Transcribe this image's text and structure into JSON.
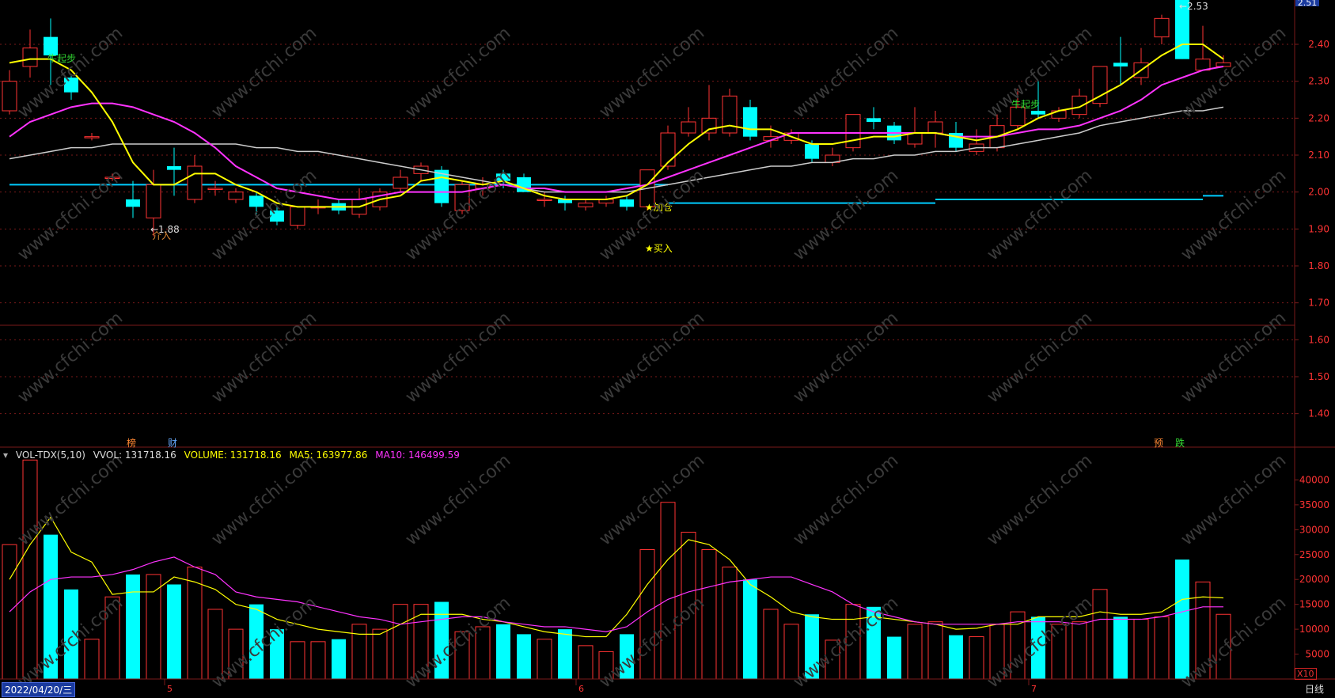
{
  "colors": {
    "background": "#000000",
    "up": "#ff3333",
    "down": "#00ffff",
    "ma5": "#ffff00",
    "ma10": "#ff33ff",
    "ma_long": "#cccccc",
    "support": "#00ccff",
    "grid": "#7a1a1a",
    "axis_text": "#ff3333"
  },
  "price_axis": {
    "min": 1.32,
    "max": 2.52,
    "ticks": [
      "2.40",
      "2.30",
      "2.20",
      "2.10",
      "2.00",
      "1.90",
      "1.80",
      "1.70",
      "1.60",
      "1.50",
      "1.40"
    ],
    "top_tag": "2.51"
  },
  "volume_axis": {
    "max": 45000,
    "ticks": [
      "40000",
      "35000",
      "30000",
      "25000",
      "20000",
      "15000",
      "10000",
      "5000"
    ],
    "unit": "X10"
  },
  "candles": [
    {
      "o": 2.22,
      "c": 2.3,
      "h": 2.33,
      "l": 2.21
    },
    {
      "o": 2.34,
      "c": 2.39,
      "h": 2.44,
      "l": 2.31
    },
    {
      "o": 2.42,
      "c": 2.37,
      "h": 2.47,
      "l": 2.29
    },
    {
      "o": 2.31,
      "c": 2.27,
      "h": 2.32,
      "l": 2.25
    },
    {
      "o": 2.15,
      "c": 2.15,
      "h": 2.16,
      "l": 2.14
    },
    {
      "o": 2.04,
      "c": 2.04,
      "h": 2.05,
      "l": 2.03
    },
    {
      "o": 1.98,
      "c": 1.96,
      "h": 2.03,
      "l": 1.93
    },
    {
      "o": 1.93,
      "c": 2.02,
      "h": 2.06,
      "l": 1.88
    },
    {
      "o": 2.07,
      "c": 2.06,
      "h": 2.12,
      "l": 1.99
    },
    {
      "o": 1.98,
      "c": 2.07,
      "h": 2.1,
      "l": 1.97
    },
    {
      "o": 2.01,
      "c": 2.01,
      "h": 2.03,
      "l": 1.99
    },
    {
      "o": 1.98,
      "c": 2.0,
      "h": 2.01,
      "l": 1.97
    },
    {
      "o": 1.99,
      "c": 1.96,
      "h": 2.0,
      "l": 1.94
    },
    {
      "o": 1.95,
      "c": 1.92,
      "h": 1.96,
      "l": 1.91
    },
    {
      "o": 1.91,
      "c": 1.96,
      "h": 1.96,
      "l": 1.9
    },
    {
      "o": 1.96,
      "c": 1.96,
      "h": 1.98,
      "l": 1.94
    },
    {
      "o": 1.97,
      "c": 1.95,
      "h": 1.98,
      "l": 1.94
    },
    {
      "o": 1.94,
      "c": 1.98,
      "h": 2.01,
      "l": 1.93
    },
    {
      "o": 1.96,
      "c": 2.0,
      "h": 2.01,
      "l": 1.95
    },
    {
      "o": 2.01,
      "c": 2.04,
      "h": 2.06,
      "l": 2.0
    },
    {
      "o": 2.05,
      "c": 2.07,
      "h": 2.08,
      "l": 2.03
    },
    {
      "o": 2.06,
      "c": 1.97,
      "h": 2.07,
      "l": 1.96
    },
    {
      "o": 1.95,
      "c": 2.02,
      "h": 2.03,
      "l": 1.94
    },
    {
      "o": 2.01,
      "c": 2.02,
      "h": 2.04,
      "l": 1.99
    },
    {
      "o": 2.05,
      "c": 2.03,
      "h": 2.06,
      "l": 2.01
    },
    {
      "o": 2.04,
      "c": 2.0,
      "h": 2.05,
      "l": 2.0
    },
    {
      "o": 1.98,
      "c": 1.98,
      "h": 2.0,
      "l": 1.96
    },
    {
      "o": 1.98,
      "c": 1.97,
      "h": 1.99,
      "l": 1.95
    },
    {
      "o": 1.96,
      "c": 1.97,
      "h": 1.98,
      "l": 1.95
    },
    {
      "o": 1.97,
      "c": 1.98,
      "h": 1.99,
      "l": 1.96
    },
    {
      "o": 1.98,
      "c": 1.96,
      "h": 1.99,
      "l": 1.95
    },
    {
      "o": 1.96,
      "c": 2.06,
      "h": 2.06,
      "l": 1.95
    },
    {
      "o": 2.07,
      "c": 2.16,
      "h": 2.18,
      "l": 2.06
    },
    {
      "o": 2.16,
      "c": 2.19,
      "h": 2.23,
      "l": 2.15
    },
    {
      "o": 2.16,
      "c": 2.2,
      "h": 2.29,
      "l": 2.14
    },
    {
      "o": 2.16,
      "c": 2.26,
      "h": 2.28,
      "l": 2.15
    },
    {
      "o": 2.23,
      "c": 2.15,
      "h": 2.25,
      "l": 2.14
    },
    {
      "o": 2.14,
      "c": 2.15,
      "h": 2.18,
      "l": 2.12
    },
    {
      "o": 2.14,
      "c": 2.16,
      "h": 2.17,
      "l": 2.13
    },
    {
      "o": 2.13,
      "c": 2.09,
      "h": 2.14,
      "l": 2.08
    },
    {
      "o": 2.08,
      "c": 2.1,
      "h": 2.12,
      "l": 2.07
    },
    {
      "o": 2.12,
      "c": 2.21,
      "h": 2.21,
      "l": 2.11
    },
    {
      "o": 2.2,
      "c": 2.19,
      "h": 2.23,
      "l": 2.17
    },
    {
      "o": 2.18,
      "c": 2.14,
      "h": 2.19,
      "l": 2.13
    },
    {
      "o": 2.13,
      "c": 2.16,
      "h": 2.23,
      "l": 2.12
    },
    {
      "o": 2.16,
      "c": 2.19,
      "h": 2.22,
      "l": 2.12
    },
    {
      "o": 2.16,
      "c": 2.12,
      "h": 2.19,
      "l": 2.11
    },
    {
      "o": 2.11,
      "c": 2.13,
      "h": 2.17,
      "l": 2.1
    },
    {
      "o": 2.12,
      "c": 2.18,
      "h": 2.21,
      "l": 2.11
    },
    {
      "o": 2.18,
      "c": 2.23,
      "h": 2.28,
      "l": 2.17
    },
    {
      "o": 2.22,
      "c": 2.21,
      "h": 2.3,
      "l": 2.2
    },
    {
      "o": 2.2,
      "c": 2.22,
      "h": 2.23,
      "l": 2.19
    },
    {
      "o": 2.21,
      "c": 2.26,
      "h": 2.28,
      "l": 2.2
    },
    {
      "o": 2.24,
      "c": 2.34,
      "h": 2.34,
      "l": 2.23
    },
    {
      "o": 2.35,
      "c": 2.34,
      "h": 2.42,
      "l": 2.29
    },
    {
      "o": 2.31,
      "c": 2.35,
      "h": 2.39,
      "l": 2.29
    },
    {
      "o": 2.42,
      "c": 2.47,
      "h": 2.48,
      "l": 2.4
    },
    {
      "o": 2.53,
      "c": 2.36,
      "h": 2.53,
      "l": 2.36
    },
    {
      "o": 2.33,
      "c": 2.36,
      "h": 2.45,
      "l": 2.33
    },
    {
      "o": 2.34,
      "c": 2.35,
      "h": 2.37,
      "l": 2.34
    }
  ],
  "ma5": [
    2.35,
    2.36,
    2.36,
    2.33,
    2.27,
    2.19,
    2.08,
    2.02,
    2.02,
    2.05,
    2.05,
    2.02,
    2.0,
    1.97,
    1.96,
    1.96,
    1.96,
    1.96,
    1.98,
    1.99,
    2.03,
    2.04,
    2.03,
    2.02,
    2.03,
    2.01,
    1.99,
    1.98,
    1.98,
    1.98,
    1.99,
    2.02,
    2.08,
    2.13,
    2.17,
    2.18,
    2.17,
    2.17,
    2.15,
    2.13,
    2.13,
    2.14,
    2.15,
    2.15,
    2.16,
    2.16,
    2.15,
    2.14,
    2.15,
    2.17,
    2.2,
    2.22,
    2.23,
    2.26,
    2.29,
    2.33,
    2.37,
    2.4,
    2.4,
    2.36
  ],
  "ma10": [
    2.15,
    2.19,
    2.21,
    2.23,
    2.24,
    2.24,
    2.23,
    2.21,
    2.19,
    2.16,
    2.12,
    2.07,
    2.04,
    2.01,
    2.0,
    1.99,
    1.98,
    1.98,
    1.99,
    2.0,
    2.0,
    2.0,
    2.0,
    2.01,
    2.02,
    2.01,
    2.01,
    2.0,
    2.0,
    2.0,
    2.01,
    2.02,
    2.04,
    2.06,
    2.08,
    2.1,
    2.12,
    2.14,
    2.16,
    2.16,
    2.16,
    2.16,
    2.16,
    2.16,
    2.16,
    2.16,
    2.15,
    2.15,
    2.15,
    2.16,
    2.17,
    2.17,
    2.18,
    2.2,
    2.22,
    2.25,
    2.29,
    2.31,
    2.33,
    2.34
  ],
  "ma_long": [
    2.09,
    2.1,
    2.11,
    2.12,
    2.12,
    2.13,
    2.13,
    2.13,
    2.13,
    2.13,
    2.13,
    2.13,
    2.12,
    2.12,
    2.11,
    2.11,
    2.1,
    2.09,
    2.08,
    2.07,
    2.06,
    2.05,
    2.04,
    2.03,
    2.02,
    2.01,
    2.0,
    2.0,
    2.0,
    2.0,
    2.0,
    2.01,
    2.02,
    2.03,
    2.04,
    2.05,
    2.06,
    2.07,
    2.07,
    2.08,
    2.08,
    2.09,
    2.09,
    2.1,
    2.1,
    2.11,
    2.11,
    2.12,
    2.12,
    2.13,
    2.14,
    2.15,
    2.16,
    2.18,
    2.19,
    2.2,
    2.21,
    2.22,
    2.22,
    2.23
  ],
  "support_line": [
    {
      "from": 0,
      "to": 32,
      "value": 2.02
    },
    {
      "from": 32,
      "to": 45,
      "value": 1.97
    },
    {
      "from": 45,
      "to": 58,
      "value": 1.98
    },
    {
      "from": 58,
      "to": 59,
      "value": 1.99
    }
  ],
  "volume": [
    27000,
    44000,
    29000,
    18000,
    8000,
    16500,
    21000,
    21000,
    19000,
    22500,
    14000,
    10000,
    15000,
    10000,
    7500,
    7500,
    8000,
    11000,
    10000,
    15000,
    15000,
    15500,
    9500,
    10500,
    11000,
    9000,
    8000,
    10000,
    6700,
    5500,
    9000,
    26000,
    35500,
    29500,
    26000,
    22500,
    20000,
    14000,
    11000,
    13000,
    7800,
    15000,
    14500,
    8500,
    11000,
    11500,
    8800,
    8500,
    11000,
    13500,
    12500,
    11000,
    11500,
    18000,
    12500,
    12000,
    12500,
    24000,
    19500,
    13000
  ],
  "vol_ma5": [
    20000,
    27000,
    32500,
    25500,
    23500,
    17000,
    17500,
    17500,
    20500,
    19500,
    18000,
    15000,
    14000,
    12000,
    11000,
    10000,
    9500,
    9000,
    9000,
    11000,
    13000,
    13000,
    13000,
    12000,
    11500,
    10500,
    9500,
    9000,
    8500,
    8500,
    13000,
    19000,
    24000,
    28000,
    27000,
    24000,
    19000,
    16500,
    13500,
    12500,
    12000,
    12000,
    12500,
    12000,
    11500,
    11000,
    10000,
    10200,
    11000,
    11000,
    12500,
    12500,
    12500,
    13500,
    13000,
    13000,
    13500,
    16000,
    16500,
    16300
  ],
  "vol_ma10": [
    13500,
    17500,
    20000,
    20500,
    20500,
    21000,
    22000,
    23500,
    24500,
    22500,
    21000,
    17500,
    16500,
    16000,
    15500,
    14500,
    13500,
    12500,
    12000,
    11000,
    11500,
    12000,
    12500,
    12500,
    11500,
    11000,
    10500,
    10500,
    10000,
    9500,
    10500,
    13500,
    16000,
    17500,
    18500,
    19500,
    20000,
    20500,
    20500,
    19000,
    17500,
    15000,
    13500,
    12500,
    11500,
    11000,
    11000,
    11000,
    11000,
    11500,
    11500,
    11500,
    11000,
    12000,
    12000,
    12000,
    12500,
    13500,
    14500,
    14500
  ],
  "labels": {
    "qiqibu": "牛起步",
    "low_price": "1.88",
    "jieru": "介入",
    "jiacang": "★加仓",
    "mairu": "★买入",
    "high_price": "2.53",
    "qiqibu2": "牛起步",
    "bottom_left_1": "榜",
    "bottom_left_2": "财",
    "bottom_right_1": "预",
    "bottom_right_2": "跌"
  },
  "indicator": {
    "name": "VOL-TDX(5,10)",
    "vvol": "VVOL: 131718.16",
    "volume": "VOLUME: 131718.16",
    "ma5": "MA5: 163977.86",
    "ma10": "MA10: 146499.59"
  },
  "month_labels": [
    {
      "i": 8,
      "text": "5"
    },
    {
      "i": 28,
      "text": "6"
    },
    {
      "i": 50,
      "text": "7"
    }
  ],
  "date": "2022/04/20/三",
  "period": "日线",
  "watermark": "www.cfchi.com"
}
